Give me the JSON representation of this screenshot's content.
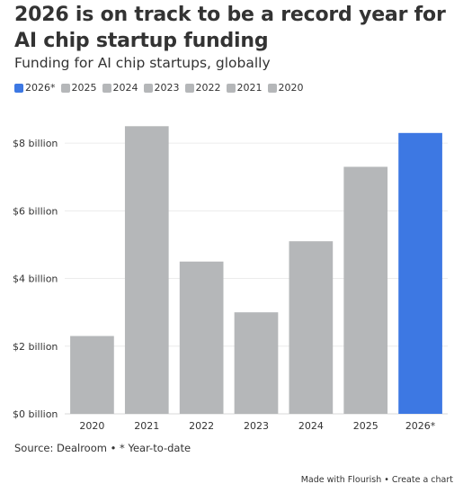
{
  "header": {
    "title": "2026 is on track to be a record year for AI chip startup funding",
    "subtitle": "Funding for AI chip startups, globally"
  },
  "legend": [
    {
      "label": "2026*",
      "color": "#3d78e3"
    },
    {
      "label": "2025",
      "color": "#b5b7b9"
    },
    {
      "label": "2024",
      "color": "#b5b7b9"
    },
    {
      "label": "2023",
      "color": "#b5b7b9"
    },
    {
      "label": "2022",
      "color": "#b5b7b9"
    },
    {
      "label": "2021",
      "color": "#b5b7b9"
    },
    {
      "label": "2020",
      "color": "#b5b7b9"
    }
  ],
  "chart_data": {
    "type": "bar",
    "categories": [
      "2020",
      "2021",
      "2022",
      "2023",
      "2024",
      "2025",
      "2026*"
    ],
    "values": [
      2.3,
      8.5,
      4.5,
      3.0,
      5.1,
      7.3,
      8.3
    ],
    "colors": [
      "#b5b7b9",
      "#b5b7b9",
      "#b5b7b9",
      "#b5b7b9",
      "#b5b7b9",
      "#b5b7b9",
      "#3d78e3"
    ],
    "ylim": [
      0,
      8.8
    ],
    "yticks": [
      0,
      2,
      4,
      6,
      8
    ],
    "ytick_labels": [
      "$0 billion",
      "$2 billion",
      "$4 billion",
      "$6 billion",
      "$8 billion"
    ],
    "grid": true,
    "legend_position": "top-left"
  },
  "footer": {
    "source": "Source: Dealroom • * Year-to-date",
    "made_with": "Made with Flourish • Create a chart"
  }
}
